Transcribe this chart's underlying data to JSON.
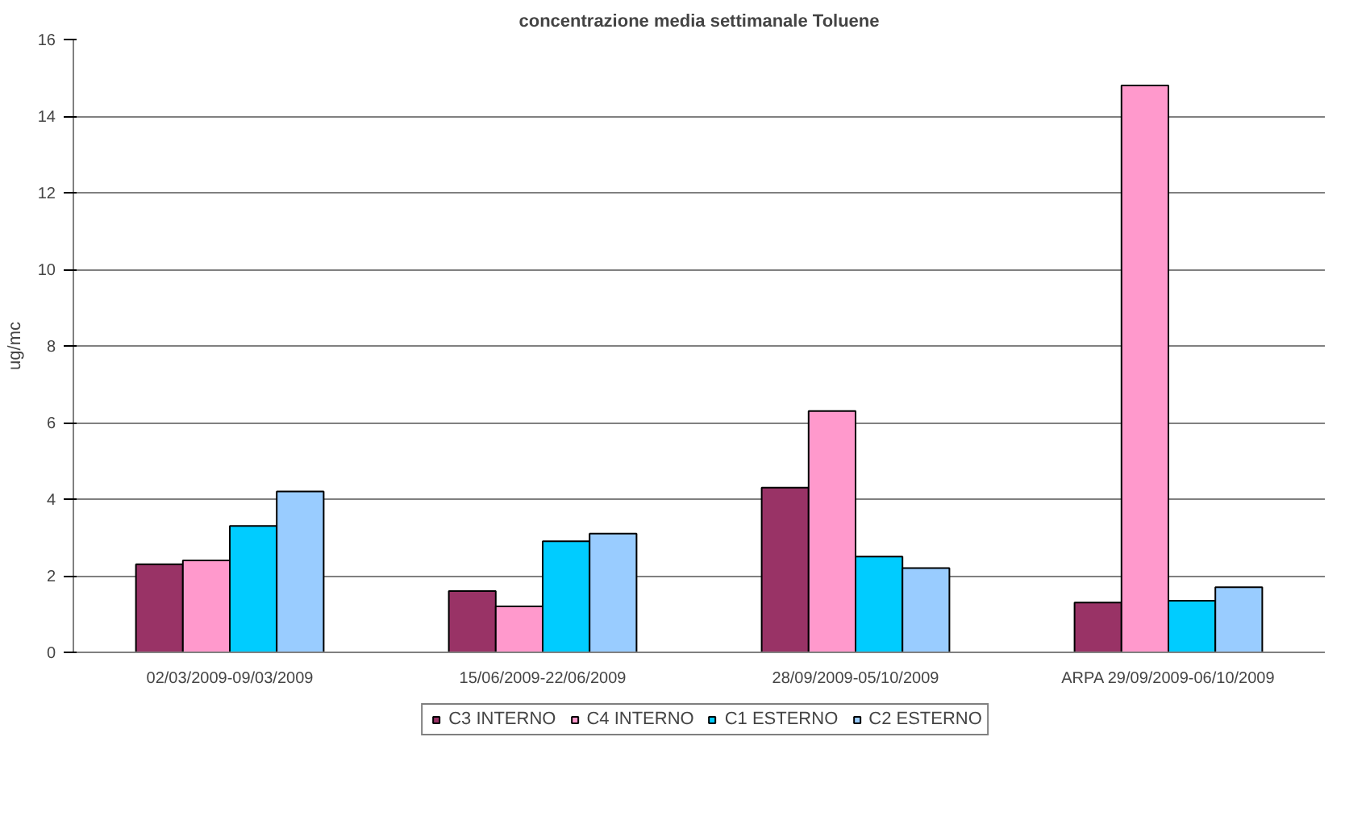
{
  "chart_data": {
    "type": "bar",
    "title": "concentrazione media settimanale Toluene",
    "ylabel": "ug/mc",
    "categories": [
      "02/03/2009-09/03/2009",
      "15/06/2009-22/06/2009",
      "28/09/2009-05/10/2009",
      "ARPA 29/09/2009-06/10/2009"
    ],
    "series": [
      {
        "name": "C3 INTERNO",
        "color": "#993366",
        "values": [
          2.3,
          1.6,
          4.3,
          1.3
        ]
      },
      {
        "name": "C4 INTERNO",
        "color": "#ff99cc",
        "values": [
          2.4,
          1.2,
          6.3,
          14.8
        ]
      },
      {
        "name": "C1 ESTERNO",
        "color": "#00ccff",
        "values": [
          3.3,
          2.9,
          2.5,
          1.35
        ]
      },
      {
        "name": "C2 ESTERNO",
        "color": "#99ccff",
        "values": [
          4.2,
          3.1,
          2.2,
          1.7
        ]
      }
    ],
    "ylim": [
      0,
      16
    ],
    "yticks": [
      0,
      2,
      4,
      6,
      8,
      10,
      12,
      14,
      16
    ],
    "grid": "y",
    "legend": "bottom"
  }
}
